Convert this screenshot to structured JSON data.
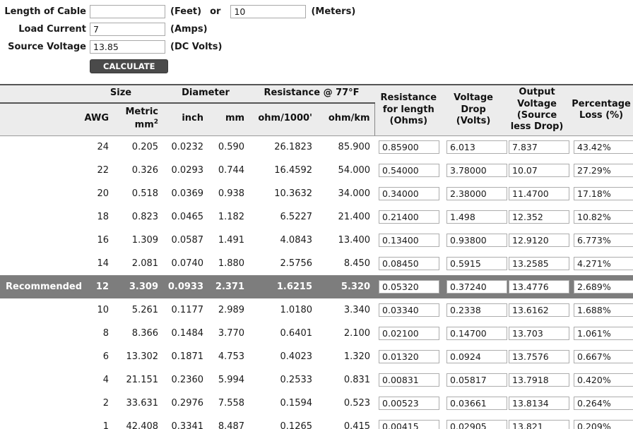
{
  "form": {
    "length_label": "Length of Cable",
    "feet_value": "",
    "feet_suffix": "(Feet)",
    "or_text": "or",
    "meters_value": "10",
    "meters_suffix": "(Meters)",
    "current_label": "Load Current",
    "current_value": "7",
    "current_suffix": "(Amps)",
    "voltage_label": "Source Voltage",
    "voltage_value": "13.85",
    "voltage_suffix": "(DC Volts)",
    "calculate_label": "CALCULATE"
  },
  "colors": {
    "recommended_row_bg": "#7d7d7d",
    "header_bg": "#ececec",
    "button_bg": "#4a4a4a",
    "dark_rule": "#555555"
  },
  "table": {
    "group_headers": {
      "size": "Size",
      "diameter": "Diameter",
      "resistance": "Resistance @ 77°F"
    },
    "sub_headers": {
      "awg": "AWG",
      "metric_line1": "Metric",
      "metric_line2": "mm",
      "metric_sup": "2",
      "inch": "inch",
      "mm": "mm",
      "ohm1000": "ohm/1000'",
      "ohmkm": "ohm/km"
    },
    "span_headers": {
      "res_length": "Resistance\nfor length\n(Ohms)",
      "voltage_drop": "Voltage\nDrop\n(Volts)",
      "output_voltage": "Output\nVoltage\n(Source\nless Drop)",
      "pct_loss": "Percentage\nLoss (%)"
    },
    "recommended_label": "Recommended",
    "rows": [
      {
        "label": "",
        "awg": "24",
        "metric": "0.205",
        "inch": "0.0232",
        "mm": "0.590",
        "ohm1000": "26.1823",
        "ohmkm": "85.900",
        "res": "0.85900",
        "drop": "6.013",
        "out": "7.837",
        "loss": "43.42%",
        "recommended": false
      },
      {
        "label": "",
        "awg": "22",
        "metric": "0.326",
        "inch": "0.0293",
        "mm": "0.744",
        "ohm1000": "16.4592",
        "ohmkm": "54.000",
        "res": "0.54000",
        "drop": "3.78000",
        "out": "10.07",
        "loss": "27.29%",
        "recommended": false
      },
      {
        "label": "",
        "awg": "20",
        "metric": "0.518",
        "inch": "0.0369",
        "mm": "0.938",
        "ohm1000": "10.3632",
        "ohmkm": "34.000",
        "res": "0.34000",
        "drop": "2.38000",
        "out": "11.4700",
        "loss": "17.18%",
        "recommended": false
      },
      {
        "label": "",
        "awg": "18",
        "metric": "0.823",
        "inch": "0.0465",
        "mm": "1.182",
        "ohm1000": "6.5227",
        "ohmkm": "21.400",
        "res": "0.21400",
        "drop": "1.498",
        "out": "12.352",
        "loss": "10.82%",
        "recommended": false
      },
      {
        "label": "",
        "awg": "16",
        "metric": "1.309",
        "inch": "0.0587",
        "mm": "1.491",
        "ohm1000": "4.0843",
        "ohmkm": "13.400",
        "res": "0.13400",
        "drop": "0.93800",
        "out": "12.9120",
        "loss": "6.773%",
        "recommended": false
      },
      {
        "label": "",
        "awg": "14",
        "metric": "2.081",
        "inch": "0.0740",
        "mm": "1.880",
        "ohm1000": "2.5756",
        "ohmkm": "8.450",
        "res": "0.08450",
        "drop": "0.5915",
        "out": "13.2585",
        "loss": "4.271%",
        "recommended": false
      },
      {
        "label": "Recommended",
        "awg": "12",
        "metric": "3.309",
        "inch": "0.0933",
        "mm": "2.371",
        "ohm1000": "1.6215",
        "ohmkm": "5.320",
        "res": "0.05320",
        "drop": "0.37240",
        "out": "13.4776",
        "loss": "2.689%",
        "recommended": true
      },
      {
        "label": "",
        "awg": "10",
        "metric": "5.261",
        "inch": "0.1177",
        "mm": "2.989",
        "ohm1000": "1.0180",
        "ohmkm": "3.340",
        "res": "0.03340",
        "drop": "0.2338",
        "out": "13.6162",
        "loss": "1.688%",
        "recommended": false
      },
      {
        "label": "",
        "awg": "8",
        "metric": "8.366",
        "inch": "0.1484",
        "mm": "3.770",
        "ohm1000": "0.6401",
        "ohmkm": "2.100",
        "res": "0.02100",
        "drop": "0.14700",
        "out": "13.703",
        "loss": "1.061%",
        "recommended": false
      },
      {
        "label": "",
        "awg": "6",
        "metric": "13.302",
        "inch": "0.1871",
        "mm": "4.753",
        "ohm1000": "0.4023",
        "ohmkm": "1.320",
        "res": "0.01320",
        "drop": "0.0924",
        "out": "13.7576",
        "loss": "0.667%",
        "recommended": false
      },
      {
        "label": "",
        "awg": "4",
        "metric": "21.151",
        "inch": "0.2360",
        "mm": "5.994",
        "ohm1000": "0.2533",
        "ohmkm": "0.831",
        "res": "0.00831",
        "drop": "0.05817",
        "out": "13.7918",
        "loss": "0.420%",
        "recommended": false
      },
      {
        "label": "",
        "awg": "2",
        "metric": "33.631",
        "inch": "0.2976",
        "mm": "7.558",
        "ohm1000": "0.1594",
        "ohmkm": "0.523",
        "res": "0.00523",
        "drop": "0.03661",
        "out": "13.8134",
        "loss": "0.264%",
        "recommended": false
      },
      {
        "label": "",
        "awg": "1",
        "metric": "42.408",
        "inch": "0.3341",
        "mm": "8.487",
        "ohm1000": "0.1265",
        "ohmkm": "0.415",
        "res": "0.00415",
        "drop": "0.02905",
        "out": "13.821",
        "loss": "0.209%",
        "recommended": false
      }
    ]
  }
}
